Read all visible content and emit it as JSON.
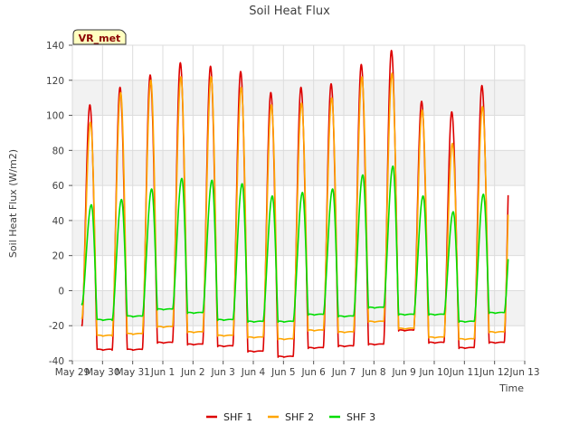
{
  "chart_data": {
    "type": "line",
    "title": "Soil Heat Flux",
    "xlabel": "Time",
    "ylabel": "Soil Heat Flux (W/m2)",
    "badge": "VR_met",
    "ylim": [
      -40,
      140
    ],
    "yticks": [
      -40,
      -20,
      0,
      20,
      40,
      60,
      80,
      100,
      120,
      140
    ],
    "xlim": [
      0,
      15
    ],
    "xticks": [
      {
        "x": 0,
        "label": "May 29"
      },
      {
        "x": 1,
        "label": "May 30"
      },
      {
        "x": 2,
        "label": "May 31"
      },
      {
        "x": 3,
        "label": "Jun 1"
      },
      {
        "x": 4,
        "label": "Jun 2"
      },
      {
        "x": 5,
        "label": "Jun 3"
      },
      {
        "x": 6,
        "label": "Jun 4"
      },
      {
        "x": 7,
        "label": "Jun 5"
      },
      {
        "x": 8,
        "label": "Jun 6"
      },
      {
        "x": 9,
        "label": "Jun 7"
      },
      {
        "x": 10,
        "label": "Jun 8"
      },
      {
        "x": 11,
        "label": "Jun 9"
      },
      {
        "x": 12,
        "label": "Jun 10"
      },
      {
        "x": 13,
        "label": "Jun 11"
      },
      {
        "x": 14,
        "label": "Jun 12"
      },
      {
        "x": 15,
        "label": "Jun 13"
      }
    ],
    "grid": true,
    "legend_position": "bottom",
    "data_start": 0.3,
    "data_end": 14.45,
    "series": [
      {
        "name": "SHF 1",
        "color": "#dd0000",
        "peak_time": 0.58,
        "daily_peaks": [
          106,
          116,
          123,
          130,
          128,
          125,
          113,
          116,
          118,
          129,
          137,
          108,
          102,
          117
        ],
        "daily_mins": [
          -20,
          -34,
          -34,
          -30,
          -31,
          -32,
          -35,
          -38,
          -33,
          -32,
          -31,
          -23,
          -30,
          -33,
          -30
        ]
      },
      {
        "name": "SHF 2",
        "color": "#ffa500",
        "peak_time": 0.6,
        "daily_peaks": [
          96,
          113,
          120,
          122,
          122,
          116,
          106,
          107,
          110,
          122,
          124,
          103,
          84,
          105
        ],
        "daily_mins": [
          -16,
          -26,
          -25,
          -21,
          -24,
          -26,
          -27,
          -28,
          -23,
          -24,
          -18,
          -22,
          -27,
          -28,
          -24
        ]
      },
      {
        "name": "SHF 3",
        "color": "#00dd00",
        "peak_time": 0.63,
        "daily_peaks": [
          49,
          52,
          58,
          64,
          63,
          61,
          54,
          56,
          58,
          66,
          71,
          54,
          45,
          55
        ],
        "daily_mins": [
          -8,
          -17,
          -15,
          -11,
          -13,
          -17,
          -18,
          -18,
          -14,
          -15,
          -10,
          -14,
          -14,
          -18,
          -13
        ]
      }
    ]
  }
}
